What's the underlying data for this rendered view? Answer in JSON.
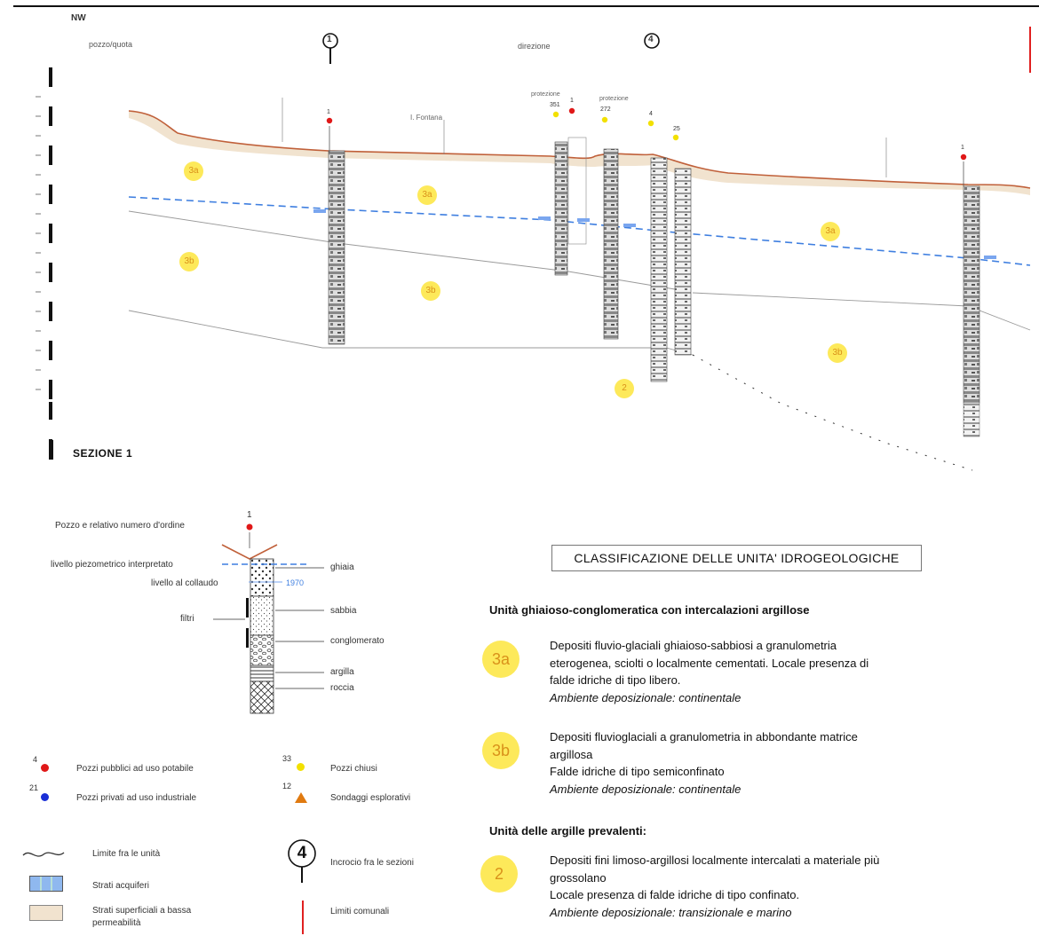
{
  "section": {
    "title": "SEZIONE 1",
    "corner_label": "NW",
    "crossing_1": "1",
    "crossing_2": "4",
    "unit_labels": {
      "u3a_1": "3a",
      "u3a_2": "3a",
      "u3a_3": "3a",
      "u3b_1": "3b",
      "u3b_2": "3b",
      "u3b_3": "3b",
      "u2": "2"
    },
    "wells": {
      "w_a": "1",
      "w_b": "351",
      "w_c": "1",
      "w_d": "272",
      "w_e": "4",
      "w_f": "25",
      "w_g": "1"
    },
    "small_labels": {
      "top_a": "pozzo/quota",
      "top_b": "direzione",
      "ground_a": "I. Fontana",
      "well_b_tag": "protezione",
      "well_d_tag": "protezione"
    }
  },
  "well_legend": {
    "well_number": "1",
    "well_label": "Pozzo e relativo numero d'ordine",
    "piezo_label": "livello piezometrico interpretato",
    "collaudo_label": "livello al collaudo",
    "collaudo_year": "1970",
    "filtri_label": "filtri",
    "lith": [
      "ghiaia",
      "sabbia",
      "conglomerato",
      "argilla",
      "roccia"
    ]
  },
  "symbols": {
    "public_num": "4",
    "public_label": "Pozzi pubblici ad uso potabile",
    "private_num": "21",
    "private_label": "Pozzi privati ad uso industriale",
    "closed_num": "33",
    "closed_label": "Pozzi chiusi",
    "sondaggi_num": "12",
    "sondaggi_label": "Sondaggi esplorativi",
    "limite_label": "Limite fra le unità",
    "acquiferi_label": "Strati acquiferi",
    "superficiali_label": "Strati superficiali a bassa permeabilità",
    "incrocio_num": "4",
    "incrocio_label": "Incrocio fra le sezioni",
    "comunali_label": "Limiti comunali"
  },
  "classification": {
    "title": "CLASSIFICAZIONE DELLE UNITA' IDROGEOLOGICHE",
    "group1": "Unità ghiaioso-conglomeratica con intercalazioni argillose",
    "group2": "Unità delle argille prevalenti:",
    "units": [
      {
        "code": "3a",
        "lines": [
          "Depositi fluvio-glaciali ghiaioso-sabbiosi a granulometria",
          "eterogenea, sciolti o localmente cementati. Locale presenza di",
          "falde idriche di tipo libero."
        ],
        "env": "Ambiente deposizionale: continentale"
      },
      {
        "code": "3b",
        "lines": [
          "Depositi fluvioglaciali a granulometria in abbondante matrice",
          "argillosa",
          "Falde idriche di tipo semiconfinato"
        ],
        "env": "Ambiente deposizionale: continentale"
      },
      {
        "code": "2",
        "lines": [
          "Depositi fini limoso-argillosi localmente intercalati a materiale più",
          "grossolano",
          "Locale presenza di falde idriche di tipo confinato."
        ],
        "env": "Ambiente deposizionale: transizionale e marino"
      }
    ]
  },
  "colors": {
    "ground_line": "#c0603a",
    "ground_fill": "#f1e3cf",
    "water_table": "#3f7fe0",
    "unit_badge": "#fde95a",
    "unit_text": "#d9911a",
    "public_well": "#e01818",
    "private_well": "#1a2fd6",
    "closed_well": "#f2e000",
    "sondaggio": "#e07a10",
    "comunal_limit": "#e02020"
  }
}
